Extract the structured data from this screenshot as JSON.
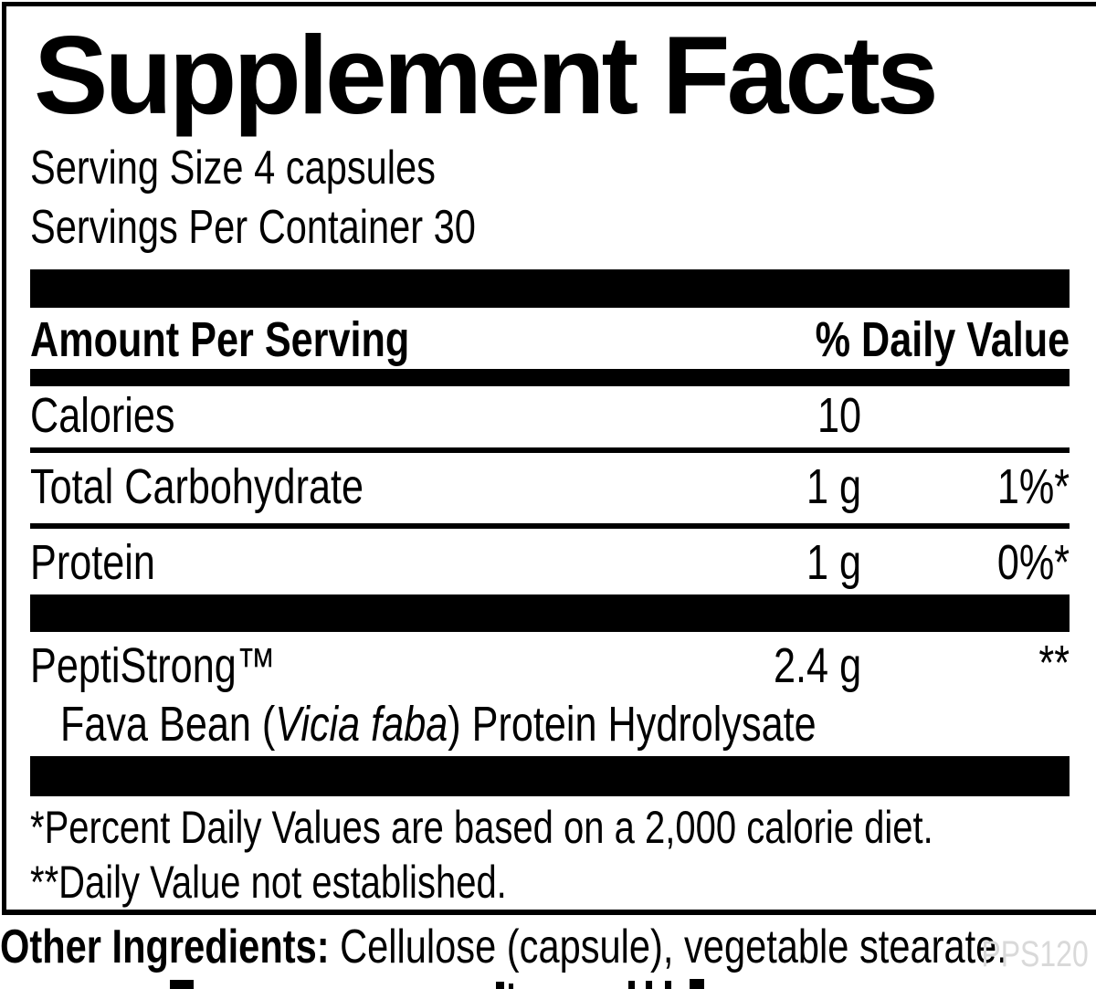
{
  "label": {
    "title": "Supplement Facts",
    "serving_size": "Serving Size 4 capsules",
    "servings_per_container": "Servings Per Container 30",
    "header": {
      "amount_per_serving": "Amount Per Serving",
      "daily_value": "% Daily Value"
    },
    "rows": [
      {
        "name": "Calories",
        "amount": "10",
        "dv": ""
      },
      {
        "name": "Total Carbohydrate",
        "amount": "1 g",
        "dv": "1%*"
      },
      {
        "name": "Protein",
        "amount": "1 g",
        "dv": "0%*"
      }
    ],
    "ingredient": {
      "name": "PeptiStrong™",
      "amount": "2.4 g",
      "dv": "**",
      "sub_prefix": "Fava Bean (",
      "sub_italic": "Vicia faba",
      "sub_suffix": ") Protein Hydrolysate"
    },
    "footnotes": [
      "*Percent Daily Values are based on a 2,000 calorie diet.",
      "**Daily Value not established."
    ],
    "other_ingredients_label": "Other Ingredients:",
    "other_ingredients_text": " Cellulose (capsule), vegetable stearate.",
    "product_code": "PPS120",
    "colors": {
      "text": "#000000",
      "background": "#ffffff",
      "product_code_gray": "#d9d9d9"
    }
  }
}
